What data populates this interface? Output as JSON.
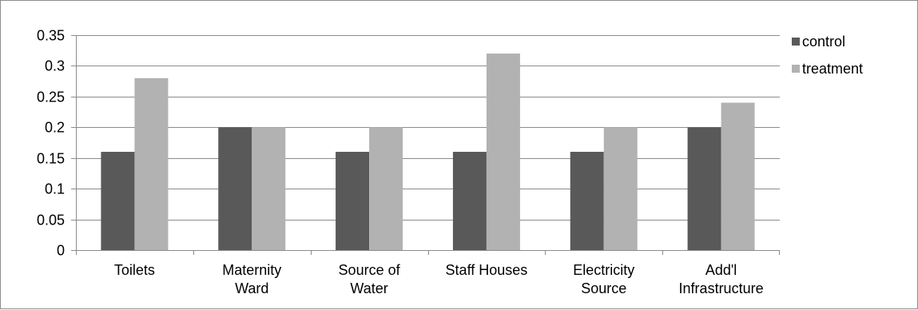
{
  "chart_data": {
    "type": "bar",
    "categories": [
      [
        "Toilets"
      ],
      [
        "Maternity",
        "Ward"
      ],
      [
        "Source of",
        "Water"
      ],
      [
        "Staff Houses"
      ],
      [
        "Electricity",
        "Source"
      ],
      [
        "Add'l",
        "Infrastructure"
      ]
    ],
    "series": [
      {
        "name": "control",
        "values": [
          0.16,
          0.2,
          0.16,
          0.16,
          0.16,
          0.2
        ],
        "color": "#595959"
      },
      {
        "name": "treatment",
        "values": [
          0.28,
          0.2,
          0.2,
          0.32,
          0.2,
          0.24
        ],
        "color": "#b2b2b2"
      }
    ],
    "title": "",
    "xlabel": "",
    "ylabel": "",
    "ylim": [
      0,
      0.35
    ],
    "yticks": [
      "0",
      "0.05",
      "0.1",
      "0.15",
      "0.2",
      "0.25",
      "0.3",
      "0.35"
    ],
    "grid": true,
    "legend_position": "top-right"
  }
}
